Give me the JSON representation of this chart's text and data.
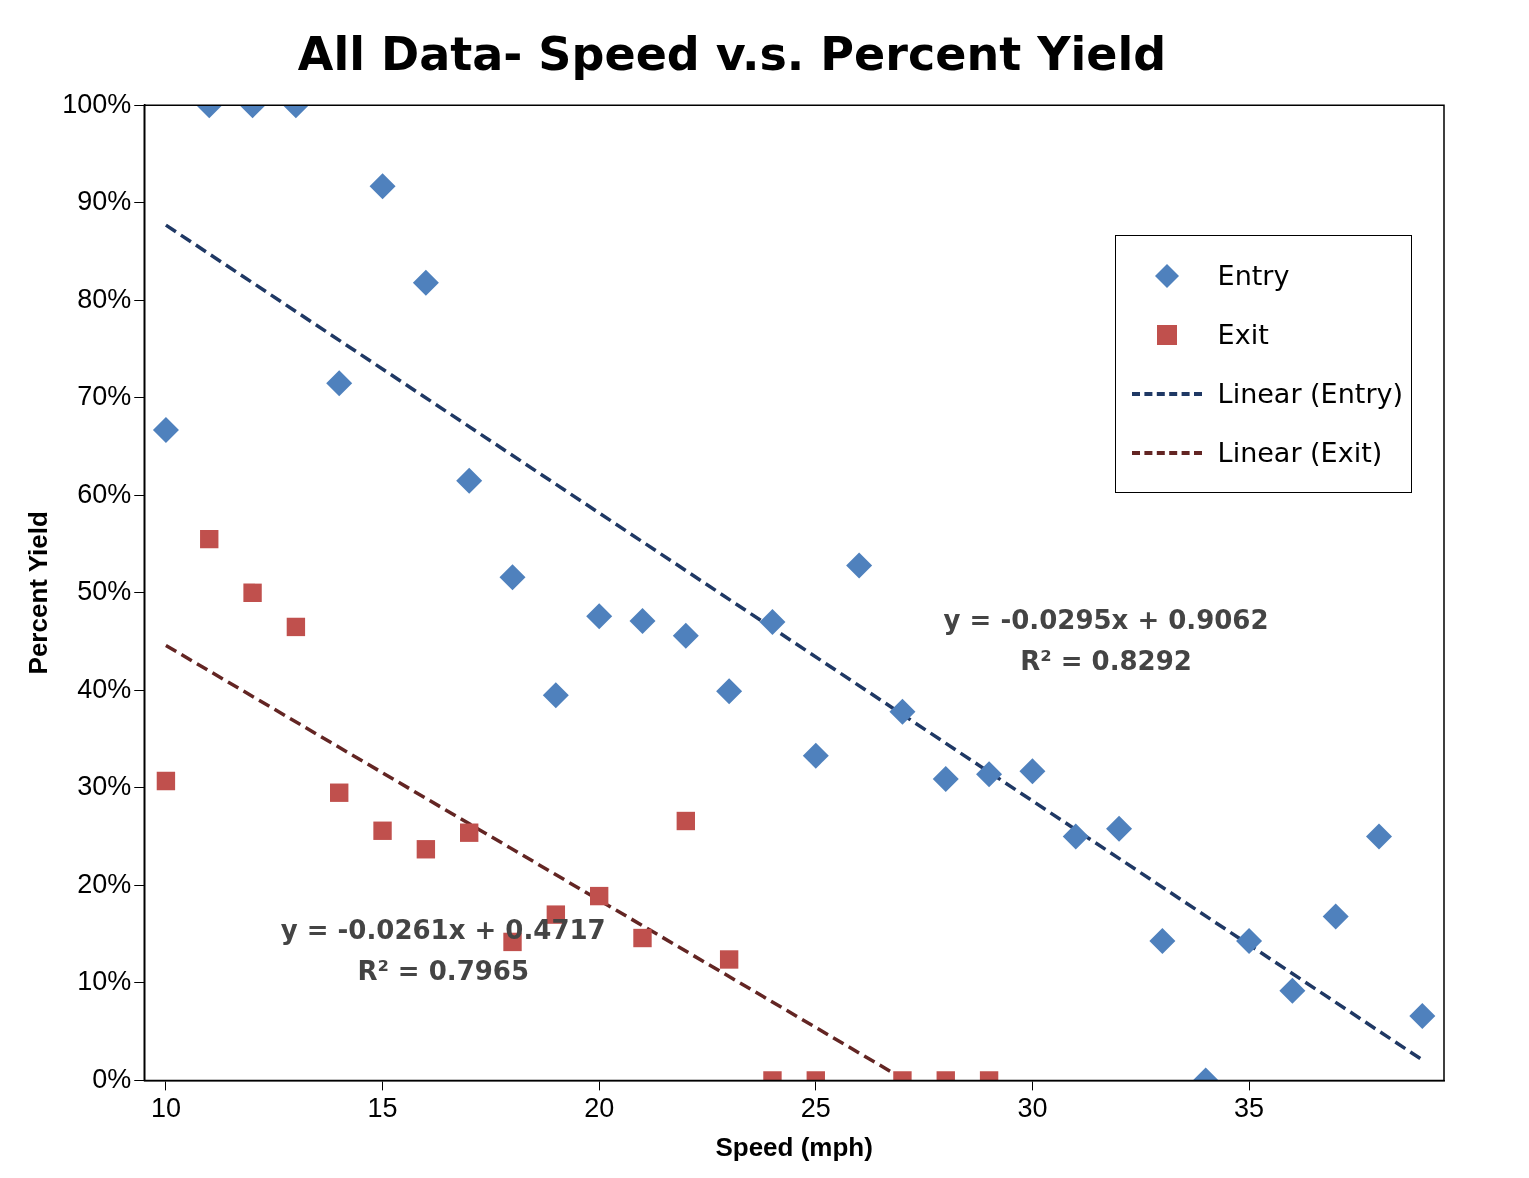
{
  "chart_data": {
    "type": "scatter",
    "title": "All Data- Speed v.s. Percent Yield",
    "xlabel": "Speed (mph)",
    "ylabel": "Percent Yield",
    "xlim": [
      9.5,
      39.5
    ],
    "xticks": [
      10,
      15,
      20,
      25,
      30,
      35
    ],
    "ylim": [
      0,
      100
    ],
    "yticks": [
      {
        "value": 0,
        "label": "0%"
      },
      {
        "value": 10,
        "label": "10%"
      },
      {
        "value": 20,
        "label": "20%"
      },
      {
        "value": 30,
        "label": "30%"
      },
      {
        "value": 40,
        "label": "40%"
      },
      {
        "value": 50,
        "label": "50%"
      },
      {
        "value": 60,
        "label": "60%"
      },
      {
        "value": 70,
        "label": "70%"
      },
      {
        "value": 80,
        "label": "80%"
      },
      {
        "value": 90,
        "label": "90%"
      },
      {
        "value": 100,
        "label": "100%"
      }
    ],
    "grid": false,
    "legend": "top right",
    "series": [
      {
        "name": "Entry",
        "type": "scatter",
        "marker": "diamond",
        "color": "#4f81bd",
        "x": [
          10,
          11,
          12,
          13,
          14,
          15,
          16,
          17,
          18,
          19,
          20,
          21,
          22,
          23,
          24,
          25,
          26,
          27,
          28,
          29,
          30,
          31,
          32,
          33,
          34,
          35,
          36,
          37,
          38,
          39
        ],
        "values": [
          66.7,
          100,
          100,
          100,
          71.5,
          91.7,
          81.8,
          61.5,
          51.6,
          39.5,
          47.6,
          47.1,
          45.6,
          39.9,
          47.0,
          33.3,
          52.8,
          37.8,
          30.9,
          31.4,
          31.7,
          25.0,
          25.8,
          14.3,
          0,
          14.3,
          9.2,
          16.8,
          25.0,
          6.6
        ]
      },
      {
        "name": "Exit",
        "type": "scatter",
        "marker": "square",
        "color": "#c0504d",
        "x": [
          10,
          11,
          12,
          13,
          14,
          15,
          16,
          17,
          18,
          19,
          20,
          21,
          22,
          23,
          24,
          25,
          27,
          28,
          29
        ],
        "values": [
          30.7,
          55.5,
          50.0,
          46.5,
          29.5,
          25.6,
          23.7,
          25.4,
          14.2,
          17.0,
          18.9,
          14.6,
          26.6,
          12.4,
          0,
          0,
          0,
          0,
          0
        ]
      },
      {
        "name": "Linear (Entry)",
        "type": "line",
        "marker": "none",
        "line_style": "dashed",
        "color": "#1f3864",
        "x": [
          10,
          39
        ],
        "values": [
          87.7,
          2.1
        ]
      },
      {
        "name": "Linear (Exit)",
        "type": "line",
        "marker": "none",
        "line_style": "dashed",
        "color": "#632523",
        "x": [
          10,
          27
        ],
        "values": [
          44.6,
          0.2
        ]
      }
    ],
    "annotations": [
      "y = -0.0295x + 0.9062",
      "R² = 0.8292",
      "y = -0.0261x + 0.4717",
      "R² = 0.7965"
    ]
  }
}
